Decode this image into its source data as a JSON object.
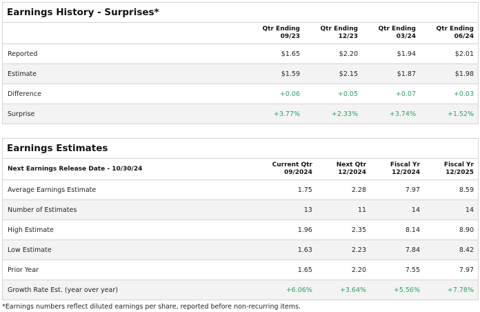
{
  "history": {
    "title": "Earnings History - Surprises*",
    "columns": [
      [
        "Qtr Ending",
        "09/23"
      ],
      [
        "Qtr Ending",
        "12/23"
      ],
      [
        "Qtr Ending",
        "03/24"
      ],
      [
        "Qtr Ending",
        "06/24"
      ]
    ],
    "rows": [
      {
        "label": "Reported",
        "values": [
          "$1.65",
          "$2.20",
          "$1.94",
          "$2.01"
        ]
      },
      {
        "label": "Estimate",
        "values": [
          "$1.59",
          "$2.15",
          "$1.87",
          "$1.98"
        ]
      },
      {
        "label": "Difference",
        "values": [
          "+0.06",
          "+0.05",
          "+0.07",
          "+0.03"
        ],
        "positive": true
      },
      {
        "label": "Surprise",
        "values": [
          "+3.77%",
          "+2.33%",
          "+3.74%",
          "+1.52%"
        ],
        "positive": true
      }
    ]
  },
  "estimates": {
    "title": "Earnings Estimates",
    "release_label": "Next Earnings Release Date - 10/30/24",
    "columns": [
      [
        "Current Qtr",
        "09/2024"
      ],
      [
        "Next Qtr",
        "12/2024"
      ],
      [
        "Fiscal Yr",
        "12/2024"
      ],
      [
        "Fiscal Yr",
        "12/2025"
      ]
    ],
    "rows": [
      {
        "label": "Average Earnings Estimate",
        "values": [
          "1.75",
          "2.28",
          "7.97",
          "8.59"
        ]
      },
      {
        "label": "Number of Estimates",
        "values": [
          "13",
          "11",
          "14",
          "14"
        ]
      },
      {
        "label": "High Estimate",
        "values": [
          "1.96",
          "2.35",
          "8.14",
          "8.90"
        ]
      },
      {
        "label": "Low Estimate",
        "values": [
          "1.63",
          "2.23",
          "7.84",
          "8.42"
        ]
      },
      {
        "label": "Prior Year",
        "values": [
          "1.65",
          "2.20",
          "7.55",
          "7.97"
        ]
      },
      {
        "label": "Growth Rate Est. (year over year)",
        "values": [
          "+6.06%",
          "+3.64%",
          "+5.56%",
          "+7.78%"
        ],
        "positive": true
      }
    ]
  },
  "footnote": "*Earnings numbers reflect diluted earnings per share, reported before non-recurring items.",
  "colors": {
    "positive": "#3a9a6a",
    "row_alt": "#f3f3f3"
  }
}
